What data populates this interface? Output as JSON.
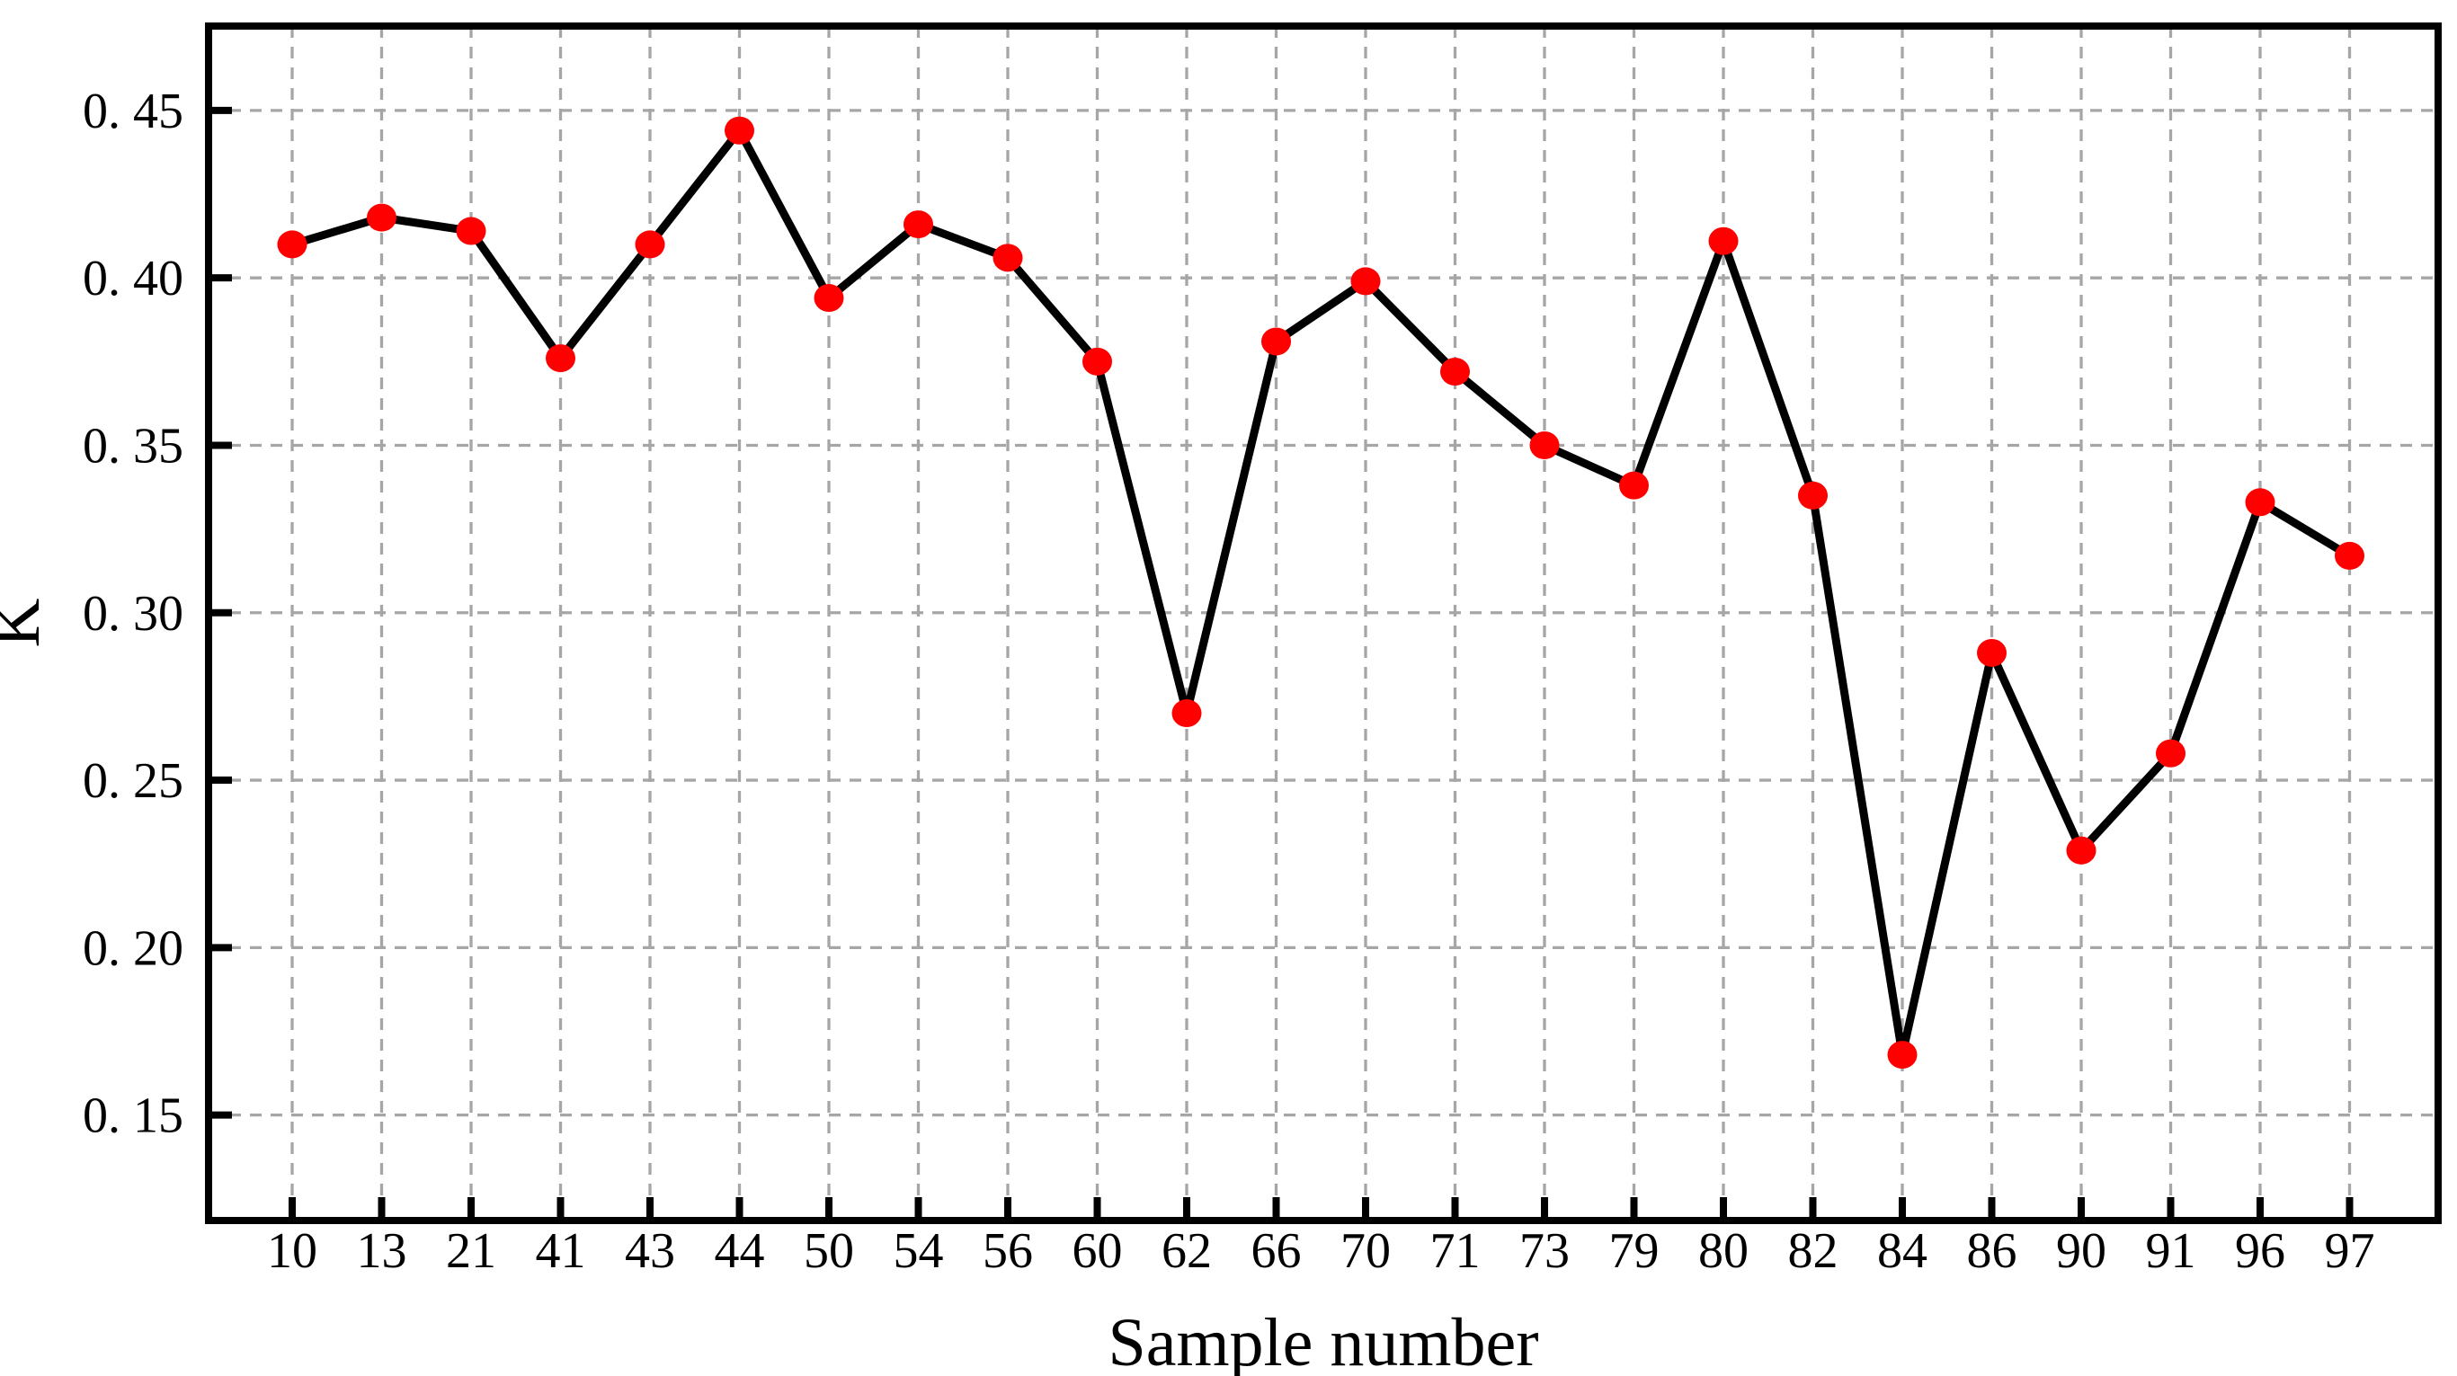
{
  "figure": {
    "background": "#ffffff"
  },
  "chart_data": {
    "type": "line",
    "title": "",
    "xlabel": "Sample number",
    "ylabel": "K",
    "categories": [
      "10",
      "13",
      "21",
      "41",
      "43",
      "44",
      "50",
      "54",
      "56",
      "60",
      "62",
      "66",
      "70",
      "71",
      "73",
      "79",
      "80",
      "82",
      "84",
      "86",
      "90",
      "91",
      "96",
      "97"
    ],
    "values": [
      0.41,
      0.418,
      0.414,
      0.376,
      0.41,
      0.444,
      0.394,
      0.416,
      0.406,
      0.375,
      0.27,
      0.381,
      0.399,
      0.372,
      0.35,
      0.338,
      0.411,
      0.335,
      0.168,
      0.288,
      0.229,
      0.258,
      0.333,
      0.317
    ],
    "yticks": [
      0.45,
      0.4,
      0.35,
      0.3,
      0.25,
      0.2,
      0.15
    ],
    "ytick_labels": [
      "0. 45",
      "0. 40",
      "0. 35",
      "0. 30",
      "0. 25",
      "0. 20",
      "0. 15"
    ],
    "ylim": [
      0.1185,
      0.4752
    ],
    "grid": "dashed-both-axes",
    "legend": "none",
    "marker": "filled-circle",
    "colors": {
      "line": "#000000",
      "marker": "#ff0000",
      "grid": "#a6a6a6",
      "axis": "#000000",
      "text": "#000000",
      "background": "#ffffff"
    }
  }
}
